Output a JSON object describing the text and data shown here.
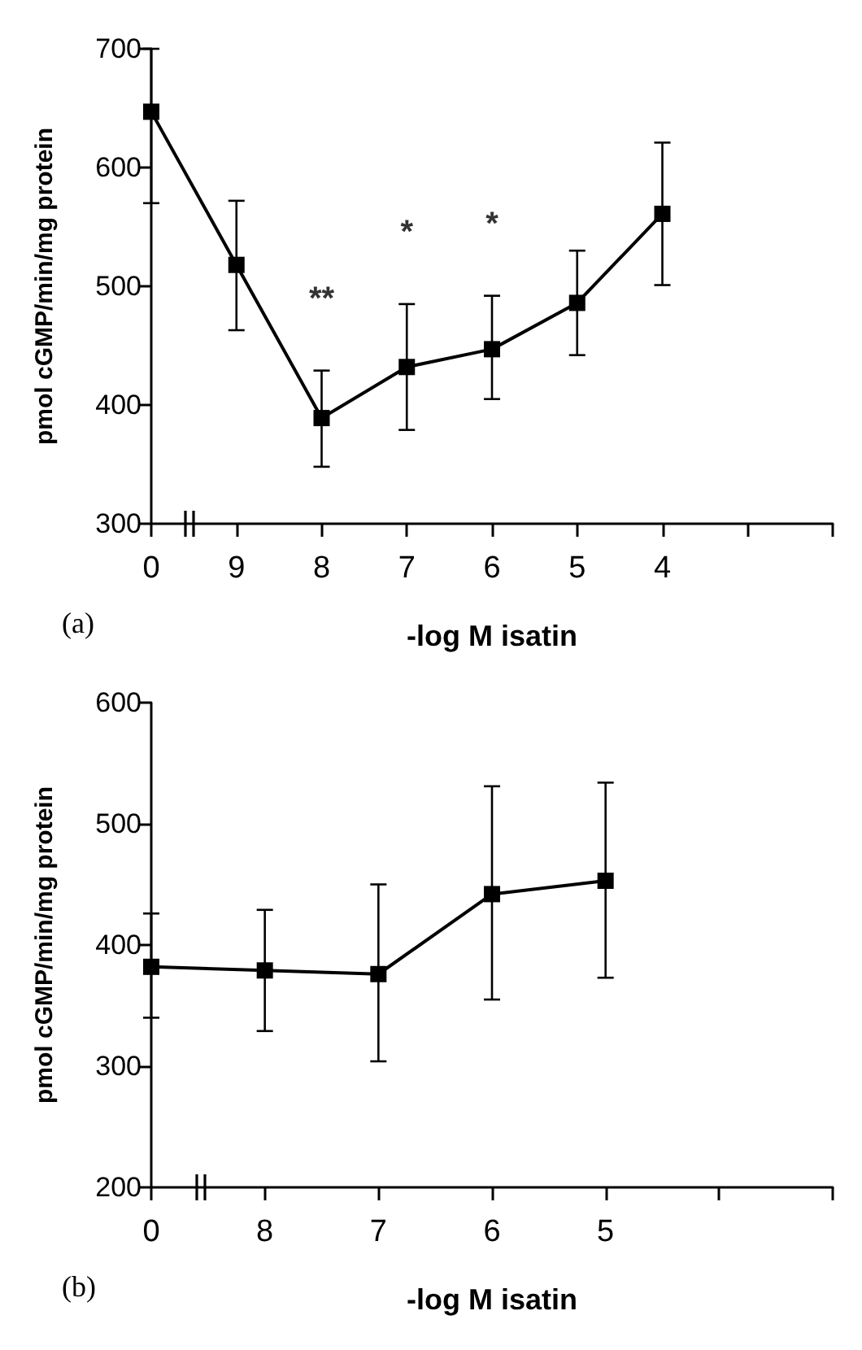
{
  "chart_data": [
    {
      "type": "line",
      "categories": [
        "0",
        "9",
        "8",
        "7",
        "6",
        "5",
        "4"
      ],
      "values": [
        647,
        518,
        389,
        432,
        447,
        486,
        561
      ],
      "errors": [
        [
          570,
          700
        ],
        [
          463,
          572
        ],
        [
          348,
          429
        ],
        [
          379,
          485
        ],
        [
          405,
          492
        ],
        [
          442,
          530
        ],
        [
          501,
          621
        ]
      ],
      "color": "#000000",
      "marker": "square",
      "line_style": "solid",
      "ylim": [
        300,
        700
      ],
      "yticks": [
        300,
        400,
        500,
        600,
        700
      ],
      "xlabel": "-log M isatin",
      "ylabel": "pmol cGMP/min/mg protein",
      "annotations": [
        "(a)",
        {
          "text": "**",
          "x": "8",
          "y": 429
        },
        {
          "text": "*",
          "x": "7",
          "y": 485
        },
        {
          "text": "*",
          "x": "6",
          "y": 492
        }
      ]
    },
    {
      "type": "line",
      "categories": [
        "0",
        "8",
        "7",
        "6",
        "5"
      ],
      "values": [
        382,
        379,
        376,
        442,
        453
      ],
      "errors": [
        [
          340,
          426
        ],
        [
          329,
          429
        ],
        [
          304,
          450
        ],
        [
          355,
          531
        ],
        [
          373,
          534
        ]
      ],
      "color": "#000000",
      "marker": "square",
      "line_style": "solid",
      "ylim": [
        200,
        600
      ],
      "yticks": [
        200,
        300,
        400,
        500,
        600
      ],
      "xlabel": "-log M isatin",
      "ylabel": "pmol cGMP/min/mg protein",
      "annotations": [
        "(b)"
      ]
    }
  ]
}
